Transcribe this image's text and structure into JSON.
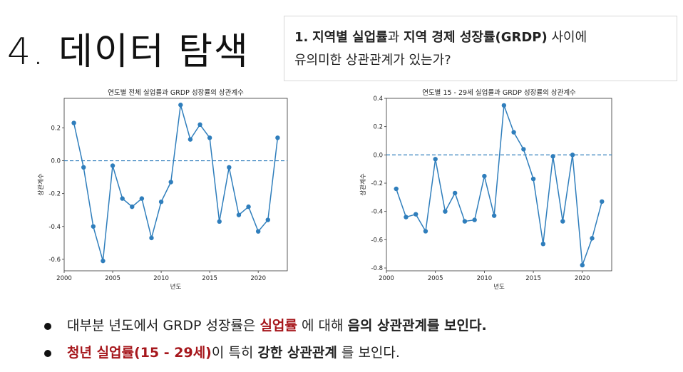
{
  "slide": {
    "title": "4. 데이터 탐색",
    "question": {
      "num": "1.",
      "part1": "지역별 실업률",
      "part2": "과",
      "part3": "지역 경제 성장률(GRDP)",
      "part4": "사이에",
      "line2": "유의미한 상관관계가 있는가?"
    },
    "bullets": [
      {
        "a": "대부분 년도에서 GRDP 성장률은 ",
        "b": "실업률",
        "c": " 에 대해 ",
        "d": "음의 상관관계를 보인다."
      },
      {
        "a": "청년 실업률(15 - 29세)",
        "b": "이 특히 ",
        "c": "강한 상관관계",
        "d": " 를 보인다."
      }
    ]
  },
  "chart_data": [
    {
      "type": "line",
      "title": "연도별 전체 실업률과 GRDP 성장률의 상관계수",
      "xlabel": "년도",
      "ylabel": "상관계수",
      "x": [
        2001,
        2002,
        2003,
        2004,
        2005,
        2006,
        2007,
        2008,
        2009,
        2010,
        2011,
        2012,
        2013,
        2014,
        2015,
        2016,
        2017,
        2018,
        2019,
        2020,
        2021,
        2022
      ],
      "values": [
        0.23,
        -0.04,
        -0.4,
        -0.61,
        -0.03,
        -0.23,
        -0.28,
        -0.23,
        -0.47,
        -0.25,
        -0.13,
        0.34,
        0.13,
        0.22,
        0.14,
        -0.37,
        -0.04,
        -0.33,
        -0.28,
        -0.43,
        -0.36,
        0.14
      ],
      "xlim": [
        2000,
        2023
      ],
      "ylim": [
        -0.67,
        0.38
      ],
      "xticks": [
        2000,
        2005,
        2010,
        2015,
        2020
      ],
      "yticks": [
        0.2,
        0.0,
        -0.2,
        -0.4,
        -0.6
      ],
      "ytick_labels": [
        "0.2",
        "0.0",
        "-0.2",
        "-0.4",
        "-0.6"
      ],
      "reference_line": 0,
      "color": "#2f7ebc"
    },
    {
      "type": "line",
      "title": "연도별 15 - 29세 실업률과 GRDP 성장률의 상관계수",
      "xlabel": "년도",
      "ylabel": "상관계수",
      "x": [
        2001,
        2002,
        2003,
        2004,
        2005,
        2006,
        2007,
        2008,
        2009,
        2010,
        2011,
        2012,
        2013,
        2014,
        2015,
        2016,
        2017,
        2018,
        2019,
        2020,
        2021,
        2022
      ],
      "values": [
        -0.24,
        -0.44,
        -0.42,
        -0.54,
        -0.03,
        -0.4,
        -0.27,
        -0.47,
        -0.46,
        -0.15,
        -0.43,
        0.35,
        0.16,
        0.04,
        -0.17,
        -0.63,
        -0.01,
        -0.47,
        0.0,
        -0.78,
        -0.59,
        -0.33
      ],
      "xlim": [
        2000,
        2023
      ],
      "ylim": [
        -0.82,
        0.4
      ],
      "xticks": [
        2000,
        2005,
        2010,
        2015,
        2020
      ],
      "yticks": [
        0.4,
        0.2,
        0.0,
        -0.2,
        -0.4,
        -0.6,
        -0.8
      ],
      "ytick_labels": [
        "0.4",
        "0.2",
        "0.0",
        "-0.2",
        "-0.4",
        "-0.6",
        "-0.8"
      ],
      "reference_line": 0,
      "color": "#2f7ebc"
    }
  ]
}
